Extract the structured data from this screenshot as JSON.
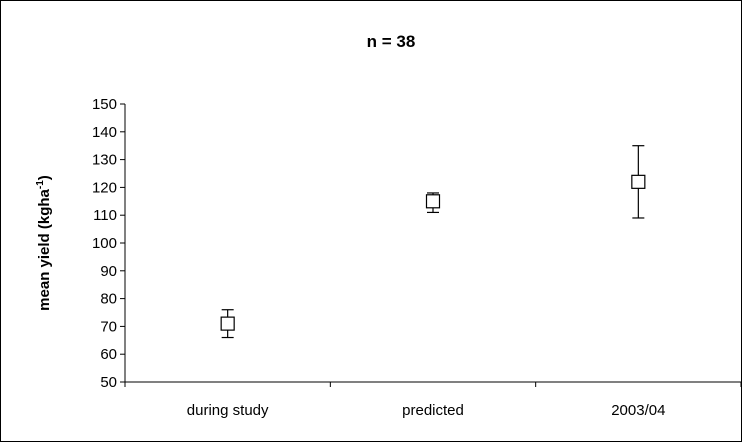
{
  "chart_data": {
    "type": "scatter",
    "title": "n = 38",
    "ylabel": "mean yield (kgha",
    "ylabel_superscript": "-1",
    "ylabel_suffix": ")",
    "ylim": [
      50,
      150
    ],
    "yticks": [
      50,
      60,
      70,
      80,
      90,
      100,
      110,
      120,
      130,
      140,
      150
    ],
    "categories": [
      "during study",
      "predicted",
      "2003/04"
    ],
    "series": [
      {
        "values": [
          71,
          115,
          122
        ],
        "error_low": [
          66,
          111,
          109
        ],
        "error_high": [
          76,
          118,
          135
        ]
      }
    ],
    "grid": false
  }
}
